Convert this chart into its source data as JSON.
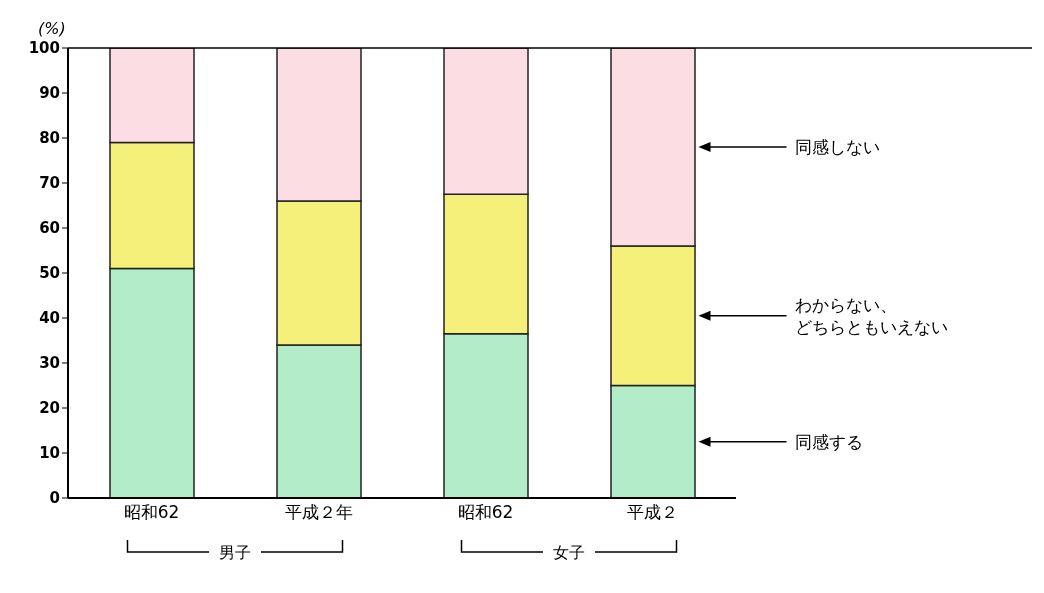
{
  "chart_data": {
    "type": "bar",
    "stacked": true,
    "ylabel": "(%)",
    "categories": [
      "昭和62",
      "平成２年",
      "昭和62",
      "平成２"
    ],
    "series": [
      {
        "name": "同感する",
        "color": "#b3ecc8",
        "values": [
          51,
          34,
          36.5,
          25
        ]
      },
      {
        "name": "わからない、どちらともいえない",
        "color": "#f4f07a",
        "values": [
          28,
          32,
          31,
          31
        ]
      },
      {
        "name": "同感しない",
        "color": "#fcdde4",
        "values": [
          21,
          34,
          32.5,
          44
        ]
      }
    ],
    "ylim": [
      0,
      100
    ],
    "yticks": [
      0,
      10,
      20,
      30,
      40,
      50,
      60,
      70,
      80,
      90,
      100
    ],
    "annotations": [
      "男子",
      "女子"
    ]
  }
}
